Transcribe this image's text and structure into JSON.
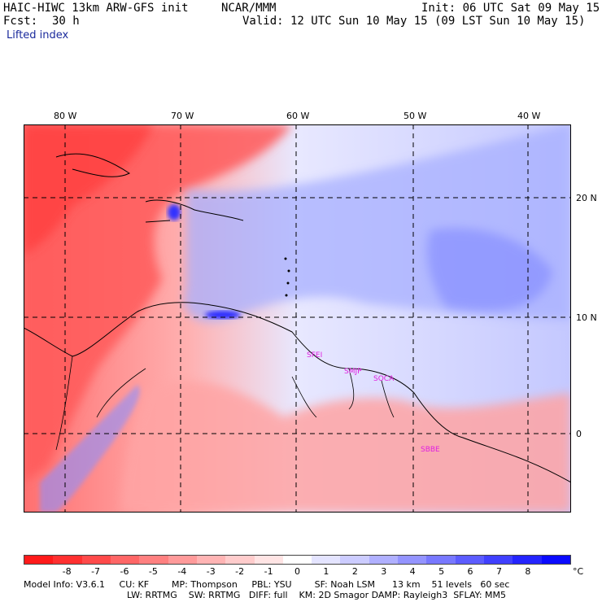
{
  "header": {
    "model": "HAIC-HIWC 13km ARW-GFS init",
    "org": "NCAR/MMM",
    "init": "Init: 06 UTC Sat 09 May 15",
    "fcst_label": "Fcst:",
    "fcst_value": "30 h",
    "valid": "Valid: 12 UTC Sun 10 May 15 (09 LST Sun 10 May 15)",
    "field": "Lifted index"
  },
  "map": {
    "lon_labels": [
      "80 W",
      "70 W",
      "60 W",
      "50 W",
      "40 W"
    ],
    "lat_labels": [
      "20 N",
      "10 N",
      "0"
    ],
    "stations": [
      "SFEI",
      "SMJP",
      "SOCA",
      "SBBE"
    ]
  },
  "colorbar": {
    "ticks": [
      "-8",
      "-7",
      "-6",
      "-5",
      "-4",
      "-3",
      "-2",
      "-1",
      "0",
      "1",
      "2",
      "3",
      "4",
      "5",
      "6",
      "7",
      "8"
    ],
    "unit": "°C",
    "colors": [
      "#ff1a1a",
      "#ff3030",
      "#ff4a4a",
      "#ff6666",
      "#ff8080",
      "#ff9a9a",
      "#ffb4b4",
      "#ffcccc",
      "#ffe4e4",
      "#ffffff",
      "#e4e4ff",
      "#ccccff",
      "#b0b0ff",
      "#9494ff",
      "#7878ff",
      "#5c5cff",
      "#4040ff",
      "#2424ff",
      "#0a0aff"
    ]
  },
  "footer": {
    "line1": "Model Info: V3.6.1     CU: KF        MP: Thompson     PBL: YSU        SF: Noah LSM      13 km    51 levels   60 sec",
    "line2": "LW: RRTMG    SW: RRTMG   DIFF: full    KM: 2D Smagor DAMP: Rayleigh3  SFLAY: MM5"
  }
}
